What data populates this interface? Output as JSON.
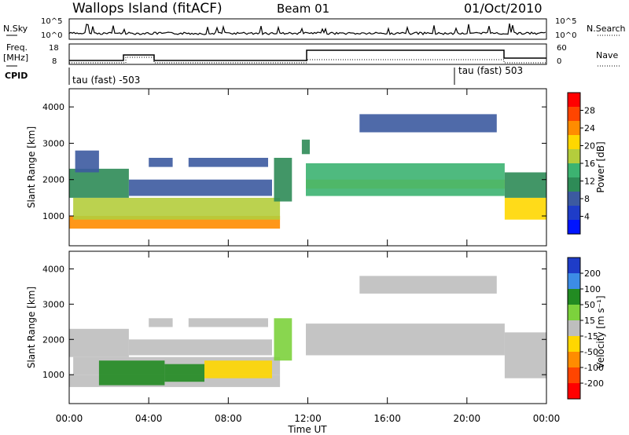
{
  "header": {
    "station": "Wallops Island (fitACF)",
    "beam": "Beam 01",
    "date": "01/Oct/2010"
  },
  "params": {
    "nsky_label": "N.Sky",
    "nsearch_label": "N.Search",
    "sky_ticks": [
      "10^5",
      "10^0"
    ],
    "nsearch_ticks": [
      "10^5",
      "10^0"
    ],
    "freq_label": "Freq.",
    "freq_unit": "[MHz]",
    "freq_ticks": [
      "18",
      "8"
    ],
    "nave_label": "Nave",
    "nave_ticks": [
      "60",
      "0"
    ],
    "cpid_label": "CPID",
    "cpid_1": "tau (fast) -503",
    "cpid_2": "tau (fast) 503"
  },
  "power_panel": {
    "ylabel": "Slant Range [km]",
    "yticks": [
      "4000",
      "3000",
      "2000",
      "1000"
    ],
    "colorbar_label": "Power [dB]",
    "colorbar_ticks": [
      "28",
      "24",
      "20",
      "16",
      "12",
      "8",
      "4"
    ],
    "colorbar_colors": [
      "#ff0000",
      "#ff4500",
      "#ff8c00",
      "#ffd700",
      "#b4cd3c",
      "#3cb371",
      "#2e8b57",
      "#3c5aa0",
      "#1e3cc8",
      "#0014ff"
    ]
  },
  "velocity_panel": {
    "ylabel": "Slant Range [km]",
    "yticks": [
      "4000",
      "3000",
      "2000",
      "1000"
    ],
    "colorbar_label": "Velocity [m s⁻¹]",
    "colorbar_ticks": [
      "200",
      "100",
      "50",
      "15",
      "-15",
      "-50",
      "-100",
      "-200"
    ],
    "colorbar_colors": [
      "#1e3cc8",
      "#3c8ce6",
      "#228b22",
      "#7cd23c",
      "#bebebe",
      "#ffd700",
      "#ff8c00",
      "#ff4500",
      "#ff0000"
    ]
  },
  "xaxis": {
    "label": "Time UT",
    "ticks": [
      "00:00",
      "04:00",
      "08:00",
      "12:00",
      "16:00",
      "20:00",
      "00:00"
    ]
  },
  "chart_data": [
    {
      "type": "heatmap",
      "title": "Power",
      "xlabel": "Time UT",
      "ylabel": "Slant Range [km]",
      "colorbar_label": "Power [dB]",
      "x_range_hours": [
        0,
        24
      ],
      "ylim": [
        180,
        4500
      ],
      "clim": [
        0,
        32
      ],
      "regions": [
        {
          "t": [
            0.0,
            10.6
          ],
          "r": [
            650,
            1000
          ],
          "value": 24
        },
        {
          "t": [
            0.2,
            10.6
          ],
          "r": [
            900,
            1500
          ],
          "value": 18
        },
        {
          "t": [
            0.0,
            3.0
          ],
          "r": [
            1500,
            2300
          ],
          "value": 10
        },
        {
          "t": [
            0.3,
            1.5
          ],
          "r": [
            2200,
            2800
          ],
          "value": 8
        },
        {
          "t": [
            3.0,
            10.2
          ],
          "r": [
            1550,
            2000
          ],
          "value": 7
        },
        {
          "t": [
            4.0,
            5.2
          ],
          "r": [
            2350,
            2600
          ],
          "value": 6
        },
        {
          "t": [
            6.0,
            10.0
          ],
          "r": [
            2350,
            2600
          ],
          "value": 6
        },
        {
          "t": [
            10.3,
            11.2
          ],
          "r": [
            1400,
            2600
          ],
          "value": 10
        },
        {
          "t": [
            11.7,
            12.1
          ],
          "r": [
            2700,
            3100
          ],
          "value": 10
        },
        {
          "t": [
            11.9,
            21.9
          ],
          "r": [
            1750,
            2000
          ],
          "value": 22
        },
        {
          "t": [
            11.9,
            21.9
          ],
          "r": [
            1550,
            2450
          ],
          "value": 14
        },
        {
          "t": [
            14.6,
            21.5
          ],
          "r": [
            3300,
            3800
          ],
          "value": 6
        },
        {
          "t": [
            21.9,
            24.0
          ],
          "r": [
            900,
            1500
          ],
          "value": 20
        },
        {
          "t": [
            21.9,
            24.0
          ],
          "r": [
            1500,
            2200
          ],
          "value": 10
        }
      ]
    },
    {
      "type": "heatmap",
      "title": "Velocity",
      "xlabel": "Time UT",
      "ylabel": "Slant Range [km]",
      "colorbar_label": "Velocity [m s⁻¹]",
      "x_range_hours": [
        0,
        24
      ],
      "ylim": [
        180,
        4500
      ],
      "clim": [
        -250,
        250
      ],
      "regions": [
        {
          "t": [
            0.0,
            10.6
          ],
          "r": [
            650,
            1000
          ],
          "value": 0
        },
        {
          "t": [
            0.2,
            10.6
          ],
          "r": [
            1000,
            1500
          ],
          "value": 0
        },
        {
          "t": [
            1.5,
            4.8
          ],
          "r": [
            700,
            1400
          ],
          "value": 40
        },
        {
          "t": [
            4.8,
            6.8
          ],
          "r": [
            800,
            1300
          ],
          "value": 40
        },
        {
          "t": [
            6.8,
            10.2
          ],
          "r": [
            900,
            1400
          ],
          "value": -30
        },
        {
          "t": [
            0.0,
            3.0
          ],
          "r": [
            1500,
            2300
          ],
          "value": 0
        },
        {
          "t": [
            3.0,
            10.2
          ],
          "r": [
            1550,
            2000
          ],
          "value": 0
        },
        {
          "t": [
            4.0,
            5.2
          ],
          "r": [
            2350,
            2600
          ],
          "value": 0
        },
        {
          "t": [
            6.0,
            10.0
          ],
          "r": [
            2350,
            2600
          ],
          "value": 0
        },
        {
          "t": [
            10.3,
            11.2
          ],
          "r": [
            1400,
            2600
          ],
          "value": 20
        },
        {
          "t": [
            11.9,
            21.9
          ],
          "r": [
            1550,
            2450
          ],
          "value": 0
        },
        {
          "t": [
            14.6,
            21.5
          ],
          "r": [
            3300,
            3800
          ],
          "value": 0
        },
        {
          "t": [
            21.9,
            24.0
          ],
          "r": [
            900,
            2200
          ],
          "value": 0
        }
      ]
    }
  ]
}
